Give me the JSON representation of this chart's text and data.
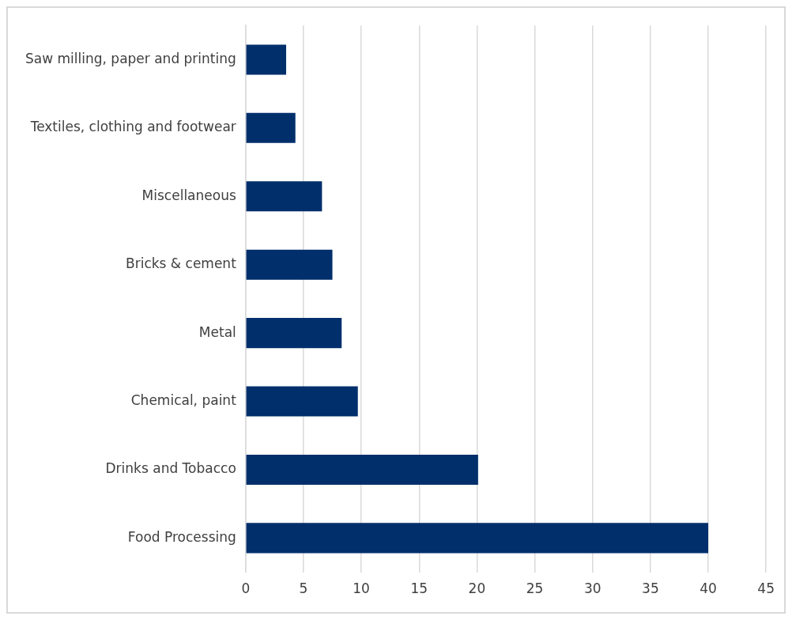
{
  "chart_data": {
    "type": "bar",
    "orientation": "horizontal",
    "categories": [
      "Saw milling, paper and printing",
      "Textiles, clothing and footwear",
      "Miscellaneous",
      "Bricks & cement",
      "Metal",
      "Chemical, paint",
      "Drinks and Tobacco",
      "Food Processing"
    ],
    "values": [
      3.5,
      4.3,
      6.6,
      7.5,
      8.3,
      9.7,
      20.1,
      40
    ],
    "color": "#002f6c",
    "xlim": [
      0,
      45
    ],
    "xticks": [
      0,
      5,
      10,
      15,
      20,
      25,
      30,
      35,
      40,
      45
    ],
    "grid": "x",
    "legend": false
  }
}
